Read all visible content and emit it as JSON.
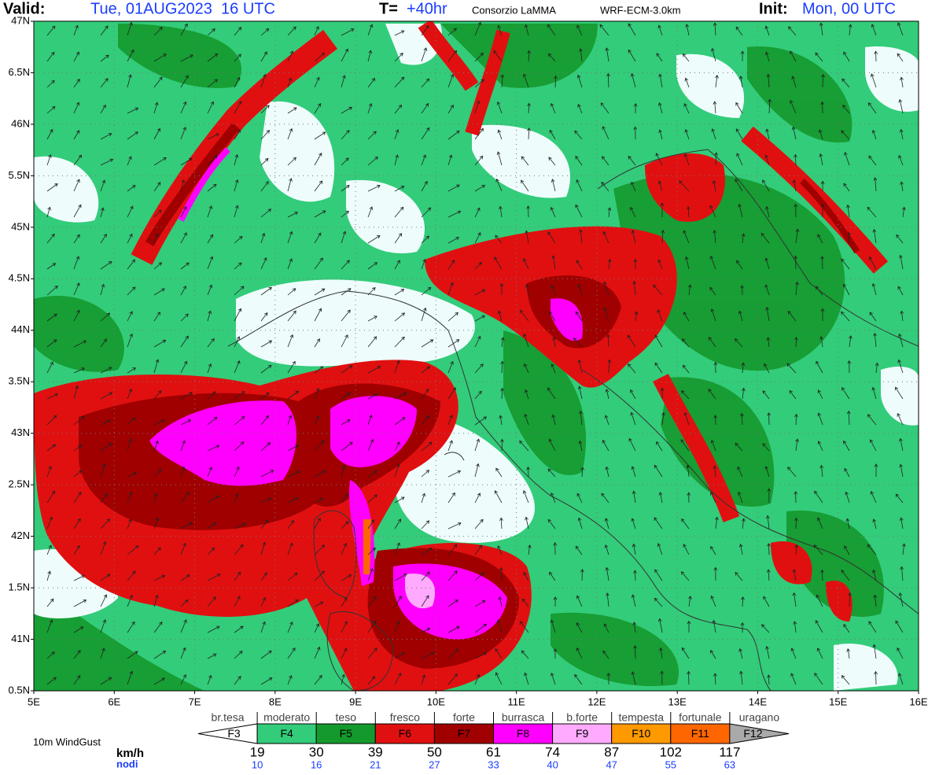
{
  "header": {
    "valid_label": "Valid:",
    "valid_value": "Tue, 01AUG2023  16 UTC",
    "t_label": "T=",
    "t_value": "+40hr",
    "source": "Consorzio LaMMA",
    "model": "WRF-ECM-3.0km",
    "init_label": "Init:",
    "init_value": "Mon, 00 UTC"
  },
  "axes": {
    "lat_labels": [
      "47N",
      "6.5N",
      "46N",
      "5.5N",
      "45N",
      "4.5N",
      "44N",
      "3.5N",
      "43N",
      "2.5N",
      "42N",
      "1.5N",
      "41N",
      "0.5N"
    ],
    "lon_labels": [
      "5E",
      "6E",
      "7E",
      "8E",
      "9E",
      "10E",
      "11E",
      "12E",
      "13E",
      "14E",
      "15E",
      "16E"
    ]
  },
  "legend": {
    "title": "10m WindGust",
    "unit_kmh": "km/h",
    "unit_knots": "nodi",
    "classes": [
      {
        "name": "br.tesa",
        "label": "F3",
        "color": "#ffffff"
      },
      {
        "name": "moderato",
        "label": "F4",
        "color": "#33cc7a"
      },
      {
        "name": "teso",
        "label": "F5",
        "color": "#14992c"
      },
      {
        "name": "fresco",
        "label": "F6",
        "color": "#e01010"
      },
      {
        "name": "forte",
        "label": "F7",
        "color": "#a00000"
      },
      {
        "name": "burrasca",
        "label": "F8",
        "color": "#ff00ff"
      },
      {
        "name": "b.forte",
        "label": "F9",
        "color": "#ffaaff"
      },
      {
        "name": "tempesta",
        "label": "F10",
        "color": "#ff9900"
      },
      {
        "name": "fortunale",
        "label": "F11",
        "color": "#ff6600"
      },
      {
        "name": "uragano",
        "label": "F12",
        "color": "#aaaaaa"
      }
    ],
    "kmh": [
      "19",
      "30",
      "39",
      "50",
      "61",
      "74",
      "87",
      "102",
      "117"
    ],
    "knots": [
      "10",
      "16",
      "21",
      "27",
      "33",
      "40",
      "47",
      "55",
      "63"
    ]
  }
}
